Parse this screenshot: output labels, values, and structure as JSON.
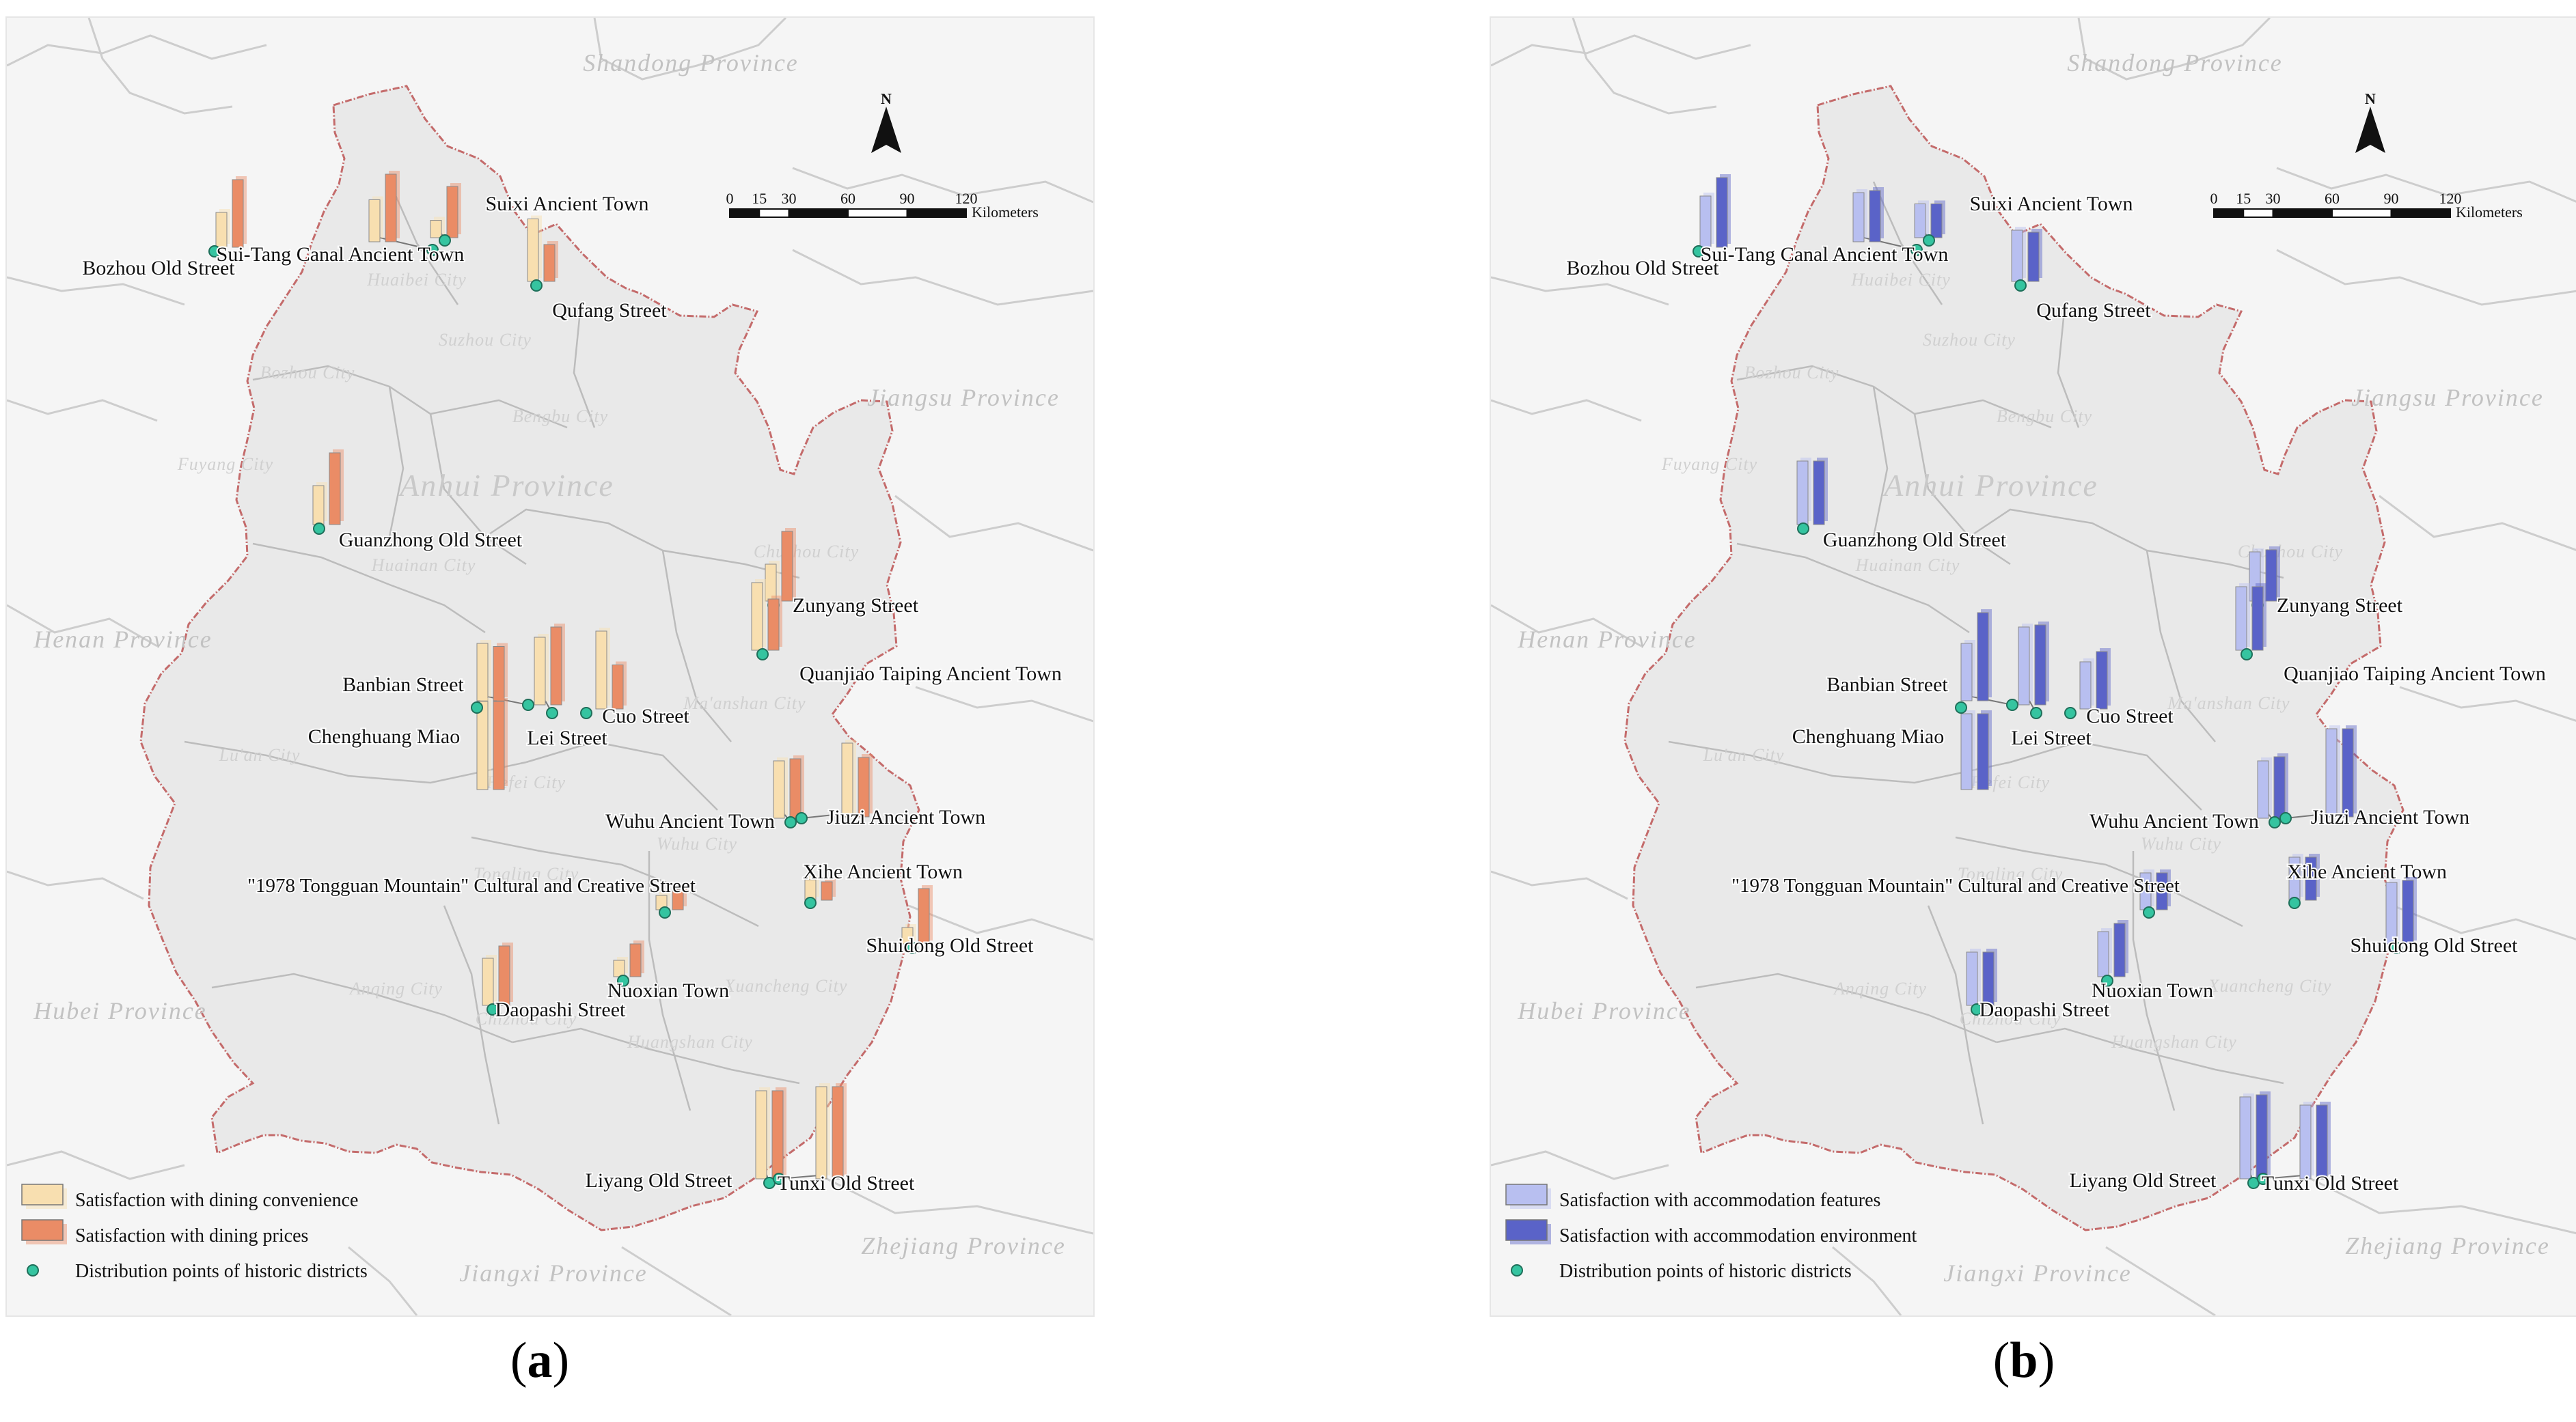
{
  "panels": [
    {
      "id": "a",
      "caption_open": "(",
      "caption_letter": "a",
      "caption_close": ")",
      "colors": {
        "series1": "#f8dfb0",
        "series2": "#ea8c66",
        "point": "#35c4a0"
      },
      "legend": [
        {
          "label": "Satisfaction with dining convenience",
          "type": "bar1"
        },
        {
          "label": "Satisfaction with dining prices",
          "type": "bar2"
        },
        {
          "label": "Distribution points of historic districts",
          "type": "point"
        }
      ]
    },
    {
      "id": "b",
      "caption_open": "(",
      "caption_letter": "b",
      "caption_close": ")",
      "colors": {
        "series1": "#b8bff0",
        "series2": "#5a63c8",
        "point": "#35c4a0"
      },
      "legend": [
        {
          "label": "Satisfaction with accommodation features",
          "type": "bar1"
        },
        {
          "label": "Satisfaction with accommodation environment",
          "type": "bar2"
        },
        {
          "label": "Distribution points of historic districts",
          "type": "point"
        }
      ]
    }
  ],
  "provinces": [
    {
      "name": "Shandong Province"
    },
    {
      "name": "Jiangsu Province"
    },
    {
      "name": "Henan Province"
    },
    {
      "name": "Hubei Province"
    },
    {
      "name": "Jiangxi Province"
    },
    {
      "name": "Zhejiang Province"
    },
    {
      "name": "Anhui Province"
    }
  ],
  "cities": [
    {
      "name": "Huaibei City"
    },
    {
      "name": "Suzhou City"
    },
    {
      "name": "Bozhou City"
    },
    {
      "name": "Bengbu City"
    },
    {
      "name": "Fuyang City"
    },
    {
      "name": "Huainan City"
    },
    {
      "name": "Chuzhou City"
    },
    {
      "name": "Lu'an City"
    },
    {
      "name": "Hefei City"
    },
    {
      "name": "Ma'anshan City"
    },
    {
      "name": "Wuhu City"
    },
    {
      "name": "Tongling City"
    },
    {
      "name": "Anqing City"
    },
    {
      "name": "Chizhou City"
    },
    {
      "name": "Xuancheng City"
    },
    {
      "name": "Huangshan City"
    }
  ],
  "north": {
    "label": "N"
  },
  "scale_bar": {
    "ticks": [
      "0",
      "15",
      "30",
      "60",
      "90",
      "120"
    ],
    "unit": "Kilometers"
  },
  "districts": [
    {
      "name": "Bozhou Old Street",
      "a": [
        0.34,
        0.66
      ],
      "b": [
        0.5,
        0.68
      ]
    },
    {
      "name": "Sui-Tang Canal Ancient Town",
      "a": [
        0.41,
        0.66
      ],
      "b": [
        0.48,
        0.5
      ]
    },
    {
      "name": "Suixi Ancient Town",
      "a": [
        0.17,
        0.5
      ],
      "b": [
        0.33,
        0.33
      ]
    },
    {
      "name": "Qufang Street",
      "a": [
        0.61,
        0.36
      ],
      "b": [
        0.5,
        0.48
      ]
    },
    {
      "name": "Guanzhong Old Street",
      "a": [
        0.38,
        0.7
      ],
      "b": [
        0.62,
        0.62
      ]
    },
    {
      "name": "Zunyang Street",
      "a": [
        0.36,
        0.68
      ],
      "b": [
        0.48,
        0.5
      ]
    },
    {
      "name": "Quanjiao Taiping Ancient Town",
      "a": [
        0.66,
        0.5
      ],
      "b": [
        0.62,
        0.62
      ]
    },
    {
      "name": "Banbian Street",
      "a": [
        0.56,
        0.53
      ],
      "b": [
        0.56,
        0.86
      ]
    },
    {
      "name": "Chenghuang Miao",
      "a": [
        0.86,
        0.86
      ],
      "b": [
        0.74,
        0.74
      ]
    },
    {
      "name": "Lei Street",
      "a": [
        0.66,
        0.76
      ],
      "b": [
        0.76,
        0.78
      ]
    },
    {
      "name": "Cuo Street",
      "a": [
        0.76,
        0.43
      ],
      "b": [
        0.46,
        0.56
      ]
    },
    {
      "name": "Wuhu Ancient Town",
      "a": [
        0.56,
        0.58
      ],
      "b": [
        0.56,
        0.6
      ]
    },
    {
      "name": "Jiuzi Ancient Town",
      "a": [
        0.72,
        0.58
      ],
      "b": [
        0.86,
        0.86
      ]
    },
    {
      "name": "Xihe Ancient Town",
      "a": [
        0.2,
        0.18
      ],
      "b": [
        0.42,
        0.42
      ]
    },
    {
      "name": "Shuidong Old Street",
      "a": [
        0.16,
        0.54
      ],
      "b": [
        0.6,
        0.62
      ]
    },
    {
      "name": "\"1978 Tongguan Mountain\" Cultural and Creative Street",
      "a": [
        0.14,
        0.2
      ],
      "b": [
        0.36,
        0.36
      ]
    },
    {
      "name": "Nuoxian Town",
      "a": [
        0.16,
        0.32
      ],
      "b": [
        0.44,
        0.52
      ]
    },
    {
      "name": "Daopashi Street",
      "a": [
        0.46,
        0.58
      ],
      "b": [
        0.52,
        0.52
      ]
    },
    {
      "name": "Liyang Old Street",
      "a": [
        0.86,
        0.86
      ],
      "b": [
        0.8,
        0.82
      ]
    },
    {
      "name": "Tunxi Old Street",
      "a": [
        0.9,
        0.9
      ],
      "b": [
        0.72,
        0.72
      ]
    }
  ]
}
